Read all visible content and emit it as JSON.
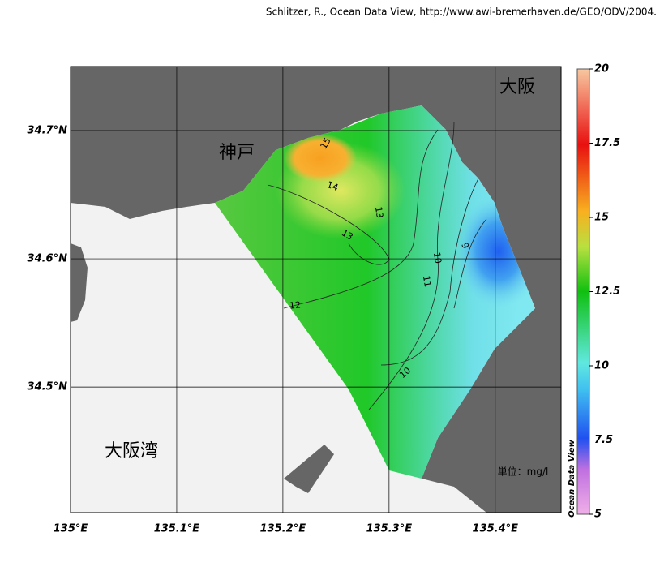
{
  "credit": "Schlitzer, R., Ocean Data View, http://www.awi-bremerhaven.de/GEO/ODV/2004.",
  "map": {
    "xlim": [
      135,
      135.462
    ],
    "ylim": [
      34.402,
      34.75
    ],
    "xticks": [
      {
        "value": 135,
        "label": "135°E"
      },
      {
        "value": 135.1,
        "label": "135.1°E"
      },
      {
        "value": 135.2,
        "label": "135.2°E"
      },
      {
        "value": 135.3,
        "label": "135.3°E"
      },
      {
        "value": 135.4,
        "label": "135.4°E"
      }
    ],
    "yticks": [
      {
        "value": 34.5,
        "label": "34.5°N"
      },
      {
        "value": 34.6,
        "label": "34.6°N"
      },
      {
        "value": 34.7,
        "label": "34.7°N"
      }
    ],
    "places": [
      "大阪",
      "神戸",
      "大阪湾"
    ],
    "contours": [
      15,
      14,
      13,
      13,
      12,
      11,
      10,
      10,
      9
    ],
    "unit": "単位：mg/l",
    "colorbar": {
      "title": "Ocean Data View",
      "lim": [
        5,
        20
      ],
      "ticks": [
        5,
        7.5,
        10,
        12.5,
        15,
        17.5,
        20
      ]
    }
  }
}
